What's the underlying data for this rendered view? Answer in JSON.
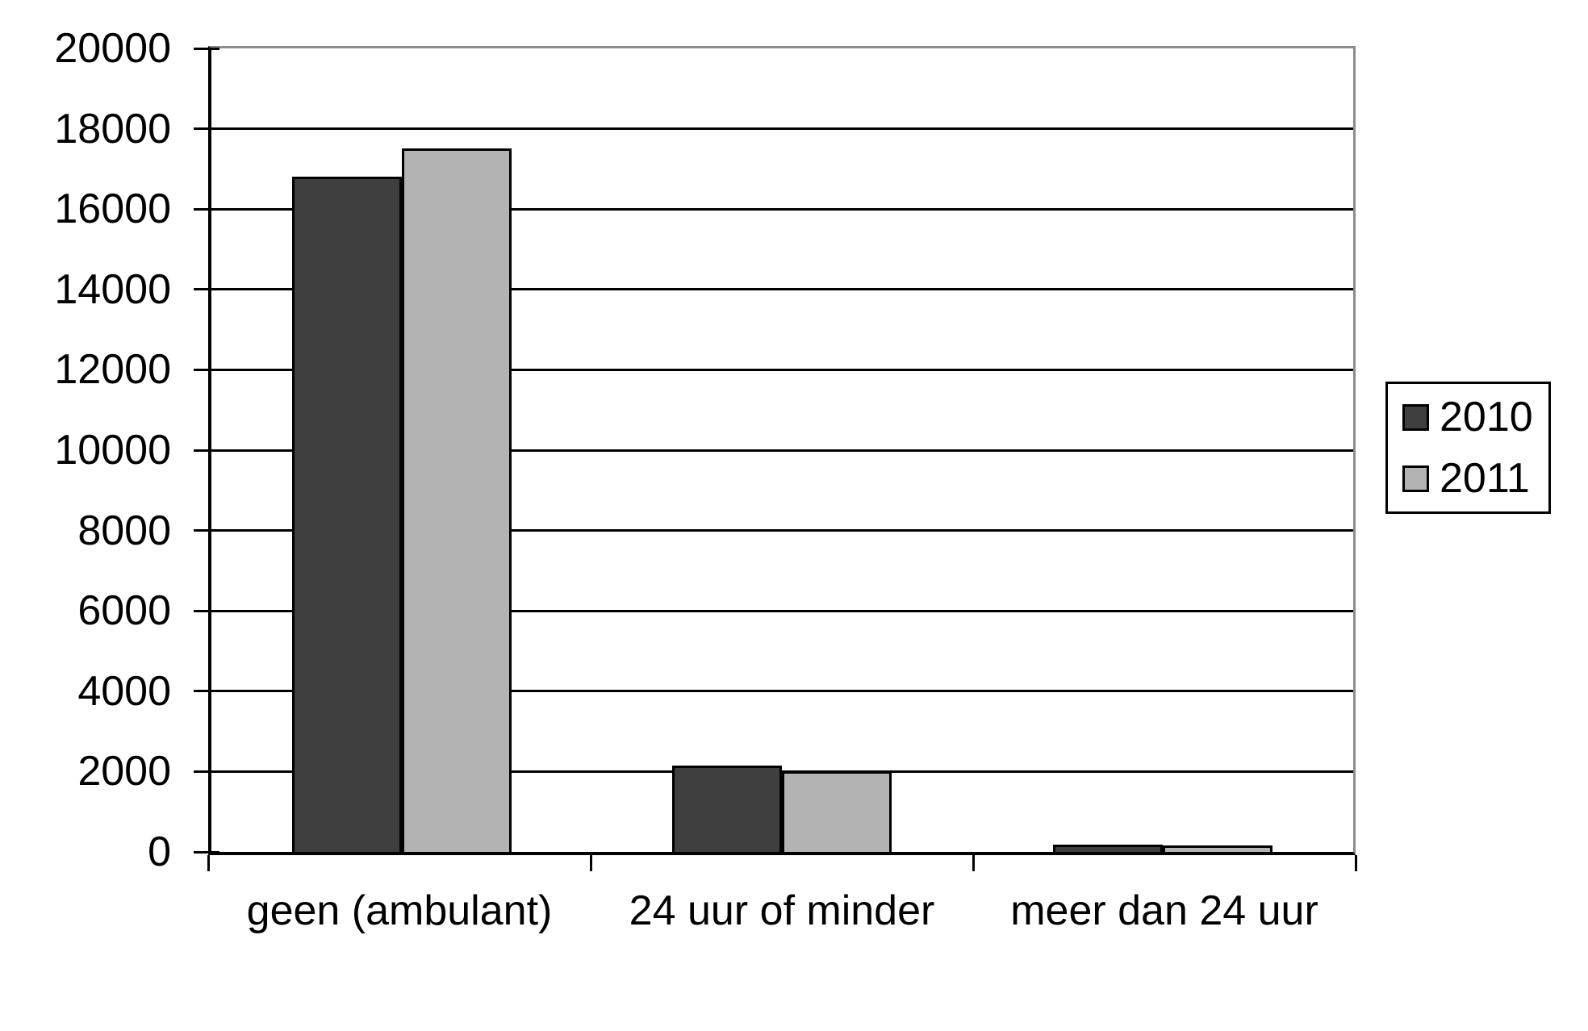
{
  "chart_data": {
    "type": "bar",
    "categories": [
      "geen (ambulant)",
      "24 uur of minder",
      "meer dan 24 uur"
    ],
    "series": [
      {
        "name": "2010",
        "color": "#3f3f3f",
        "values": [
          16800,
          2150,
          180
        ]
      },
      {
        "name": "2011",
        "color": "#b3b3b3",
        "values": [
          17500,
          2000,
          160
        ]
      }
    ],
    "ylim": [
      0,
      20000
    ],
    "ytick_step": 2000,
    "ytick_labels": [
      "0",
      "2000",
      "4000",
      "6000",
      "8000",
      "10000",
      "12000",
      "14000",
      "16000",
      "18000",
      "20000"
    ],
    "grid": true,
    "legend_position": "right",
    "legend_entries": [
      "2010",
      "2011"
    ]
  },
  "style": {
    "bar_outline_color": "#000000",
    "gridline_color": "#000000",
    "plot_border_color": "#8c8c8c",
    "axis_color": "#000000",
    "background_color": "#ffffff",
    "text_color": "#000000"
  }
}
